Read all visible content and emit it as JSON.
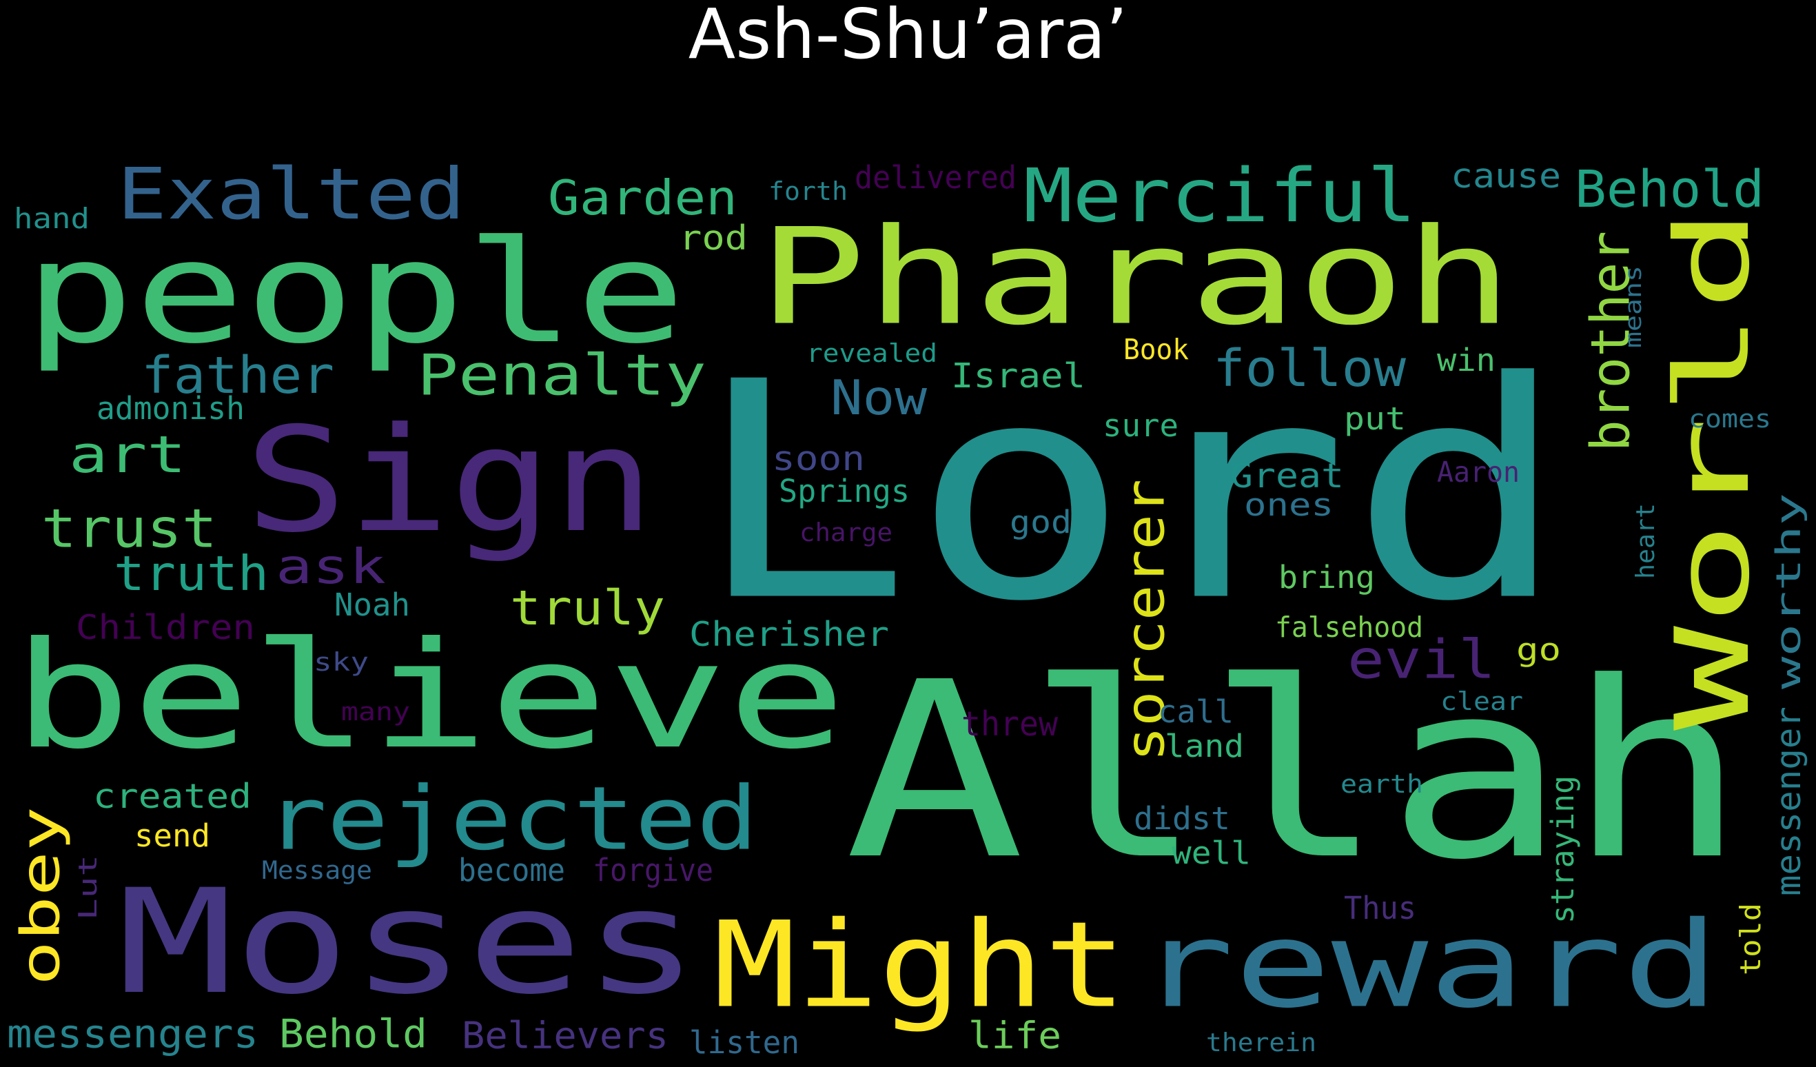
{
  "chart_data": {
    "type": "wordcloud",
    "title": "Ash-Shu’ara’",
    "words": [
      {
        "text": "Lord",
        "color": "#218f8c"
      },
      {
        "text": "Allah",
        "color": "#3bbb75"
      },
      {
        "text": "people",
        "color": "#3fbc73"
      },
      {
        "text": "Pharaoh",
        "color": "#a5db36"
      },
      {
        "text": "believe",
        "color": "#3bbb75"
      },
      {
        "text": "Moses",
        "color": "#453781"
      },
      {
        "text": "Sign",
        "color": "#482878"
      },
      {
        "text": "World",
        "color": "#c5e021"
      },
      {
        "text": "reward",
        "color": "#2c728e"
      },
      {
        "text": "Might",
        "color": "#fde725"
      },
      {
        "text": "rejected",
        "color": "#238a8d"
      },
      {
        "text": "Merciful",
        "color": "#26a784"
      },
      {
        "text": "Exalted",
        "color": "#33638d"
      },
      {
        "text": "Behold",
        "color": "#20a486"
      },
      {
        "text": "Garden",
        "color": "#31b57b"
      },
      {
        "text": "Penalty",
        "color": "#4ac16d"
      },
      {
        "text": "father",
        "color": "#277f8e"
      },
      {
        "text": "art",
        "color": "#3dbc74"
      },
      {
        "text": "trust",
        "color": "#56c667"
      },
      {
        "text": "truth",
        "color": "#1fa187"
      },
      {
        "text": "ask",
        "color": "#482475"
      },
      {
        "text": "truly",
        "color": "#a0da39"
      },
      {
        "text": "follow",
        "color": "#287d8e"
      },
      {
        "text": "Now",
        "color": "#2d708e"
      },
      {
        "text": "evil",
        "color": "#482374"
      },
      {
        "text": "brother",
        "color": "#90d743"
      },
      {
        "text": "sorcerer",
        "color": "#dde318"
      },
      {
        "text": "obey",
        "color": "#fde725"
      },
      {
        "text": "messenger",
        "color": "#277f8e"
      },
      {
        "text": "worthy",
        "color": "#2a788e"
      },
      {
        "text": "Israel",
        "color": "#35b779"
      },
      {
        "text": "soon",
        "color": "#404688"
      },
      {
        "text": "Springs",
        "color": "#22a884"
      },
      {
        "text": "Great",
        "color": "#20928c"
      },
      {
        "text": "ones",
        "color": "#2c728e"
      },
      {
        "text": "Cherisher",
        "color": "#1fa088"
      },
      {
        "text": "messengers",
        "color": "#25848e"
      },
      {
        "text": "Behold",
        "color": "#5ec962"
      },
      {
        "text": "Believers",
        "color": "#46327e"
      },
      {
        "text": "Children",
        "color": "#440154"
      },
      {
        "text": "created",
        "color": "#2db27d"
      },
      {
        "text": "send",
        "color": "#fde725"
      },
      {
        "text": "Message",
        "color": "#31688e"
      },
      {
        "text": "become",
        "color": "#2c718e"
      },
      {
        "text": "forgive",
        "color": "#481769"
      },
      {
        "text": "Lut",
        "color": "#482878"
      },
      {
        "text": "life",
        "color": "#6ccd5a"
      },
      {
        "text": "listen",
        "color": "#30698e"
      },
      {
        "text": "therein",
        "color": "#297a8e"
      },
      {
        "text": "Thus",
        "color": "#472d7b"
      },
      {
        "text": "straying",
        "color": "#35b779"
      },
      {
        "text": "told",
        "color": "#d0e11c"
      },
      {
        "text": "delivered",
        "color": "#440154"
      },
      {
        "text": "forth",
        "color": "#25858e"
      },
      {
        "text": "rod",
        "color": "#7ad151"
      },
      {
        "text": "cause",
        "color": "#24868e"
      },
      {
        "text": "hand",
        "color": "#21918c"
      },
      {
        "text": "revealed",
        "color": "#1e9b8a"
      },
      {
        "text": "Book",
        "color": "#fde725"
      },
      {
        "text": "win",
        "color": "#4ac16d"
      },
      {
        "text": "means",
        "color": "#2c728e"
      },
      {
        "text": "admonish",
        "color": "#1f9e89"
      },
      {
        "text": "sure",
        "color": "#2db27d"
      },
      {
        "text": "put",
        "color": "#44bf70"
      },
      {
        "text": "comes",
        "color": "#2a788e"
      },
      {
        "text": "Aaron",
        "color": "#482173"
      },
      {
        "text": "heart",
        "color": "#26828e"
      },
      {
        "text": "charge",
        "color": "#481467"
      },
      {
        "text": "god",
        "color": "#2a788e"
      },
      {
        "text": "bring",
        "color": "#5ec962"
      },
      {
        "text": "Noah",
        "color": "#20928c"
      },
      {
        "text": "falsehood",
        "color": "#7ad151"
      },
      {
        "text": "go",
        "color": "#bddf26"
      },
      {
        "text": "sky",
        "color": "#3e4a89"
      },
      {
        "text": "many",
        "color": "#440154"
      },
      {
        "text": "call",
        "color": "#2e6e8e"
      },
      {
        "text": "clear",
        "color": "#26828e"
      },
      {
        "text": "threw",
        "color": "#440154"
      },
      {
        "text": "land",
        "color": "#32b67a"
      },
      {
        "text": "earth",
        "color": "#23898e"
      },
      {
        "text": "didst",
        "color": "#2d708e"
      },
      {
        "text": "well",
        "color": "#2fb47c"
      }
    ]
  }
}
